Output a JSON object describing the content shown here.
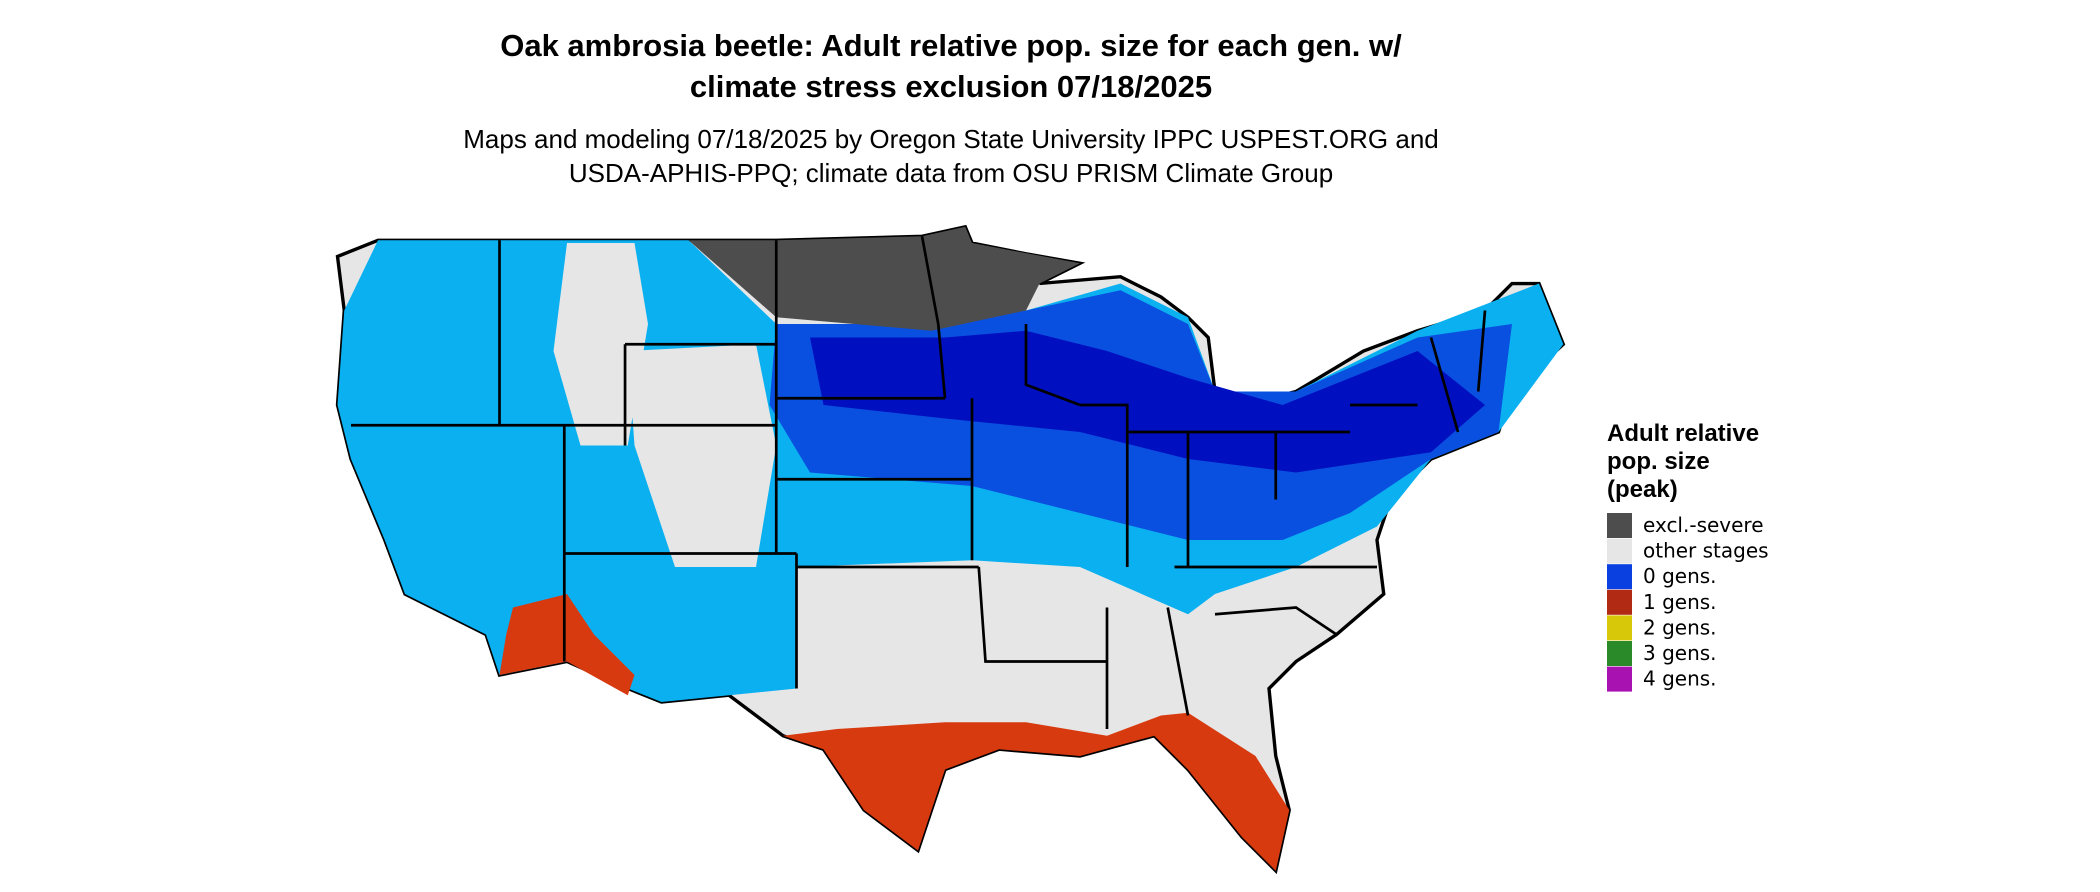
{
  "title_lines": [
    "Oak ambrosia beetle: Adult relative pop. size for each gen. w/",
    "climate stress exclusion 07/18/2025"
  ],
  "subtitle_lines": [
    "Maps and modeling 07/18/2025 by Oregon State University IPPC USPEST.ORG and",
    "USDA-APHIS-PPQ; climate data from OSU PRISM Climate Group"
  ],
  "legend": {
    "title_lines": [
      "Adult relative",
      "pop. size",
      "(peak)"
    ],
    "items": [
      {
        "label": "excl.-severe",
        "color": "#4d4d4d"
      },
      {
        "label": "other stages",
        "color": "#e6e6e6"
      },
      {
        "label": "0 gens.",
        "color": "#0a3fe0"
      },
      {
        "label": "1 gens.",
        "color": "#b02a14"
      },
      {
        "label": "2 gens.",
        "color": "#d8c80a"
      },
      {
        "label": "3 gens.",
        "color": "#2a8a2a"
      },
      {
        "label": "4 gens.",
        "color": "#a812b0"
      }
    ]
  }
}
